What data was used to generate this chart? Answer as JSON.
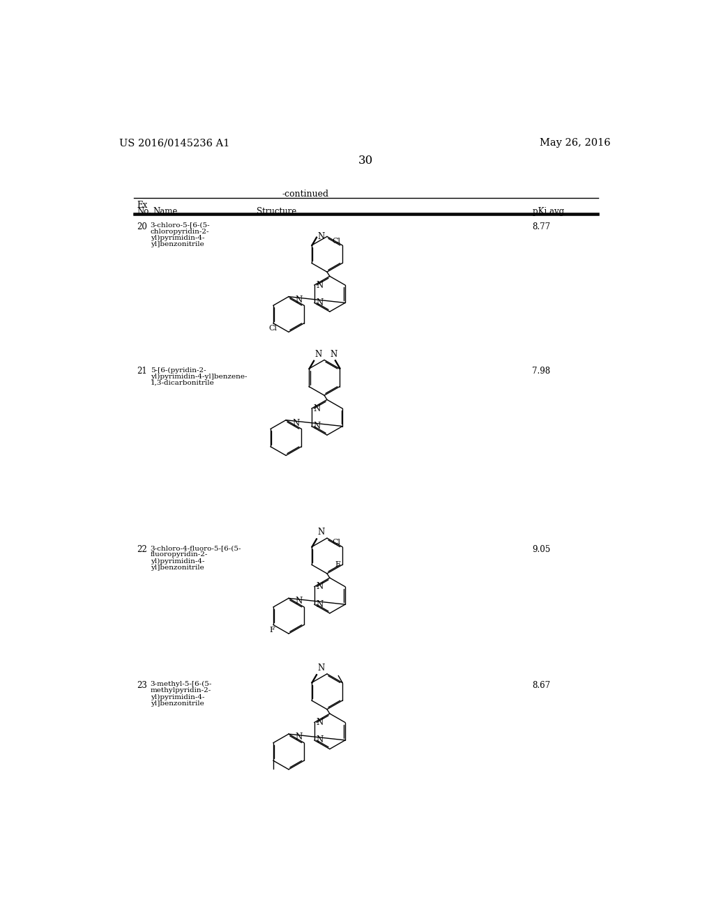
{
  "background_color": "#ffffff",
  "page_number": "30",
  "patent_left": "US 2016/0145236 A1",
  "patent_right": "May 26, 2016",
  "table_header": "-continued",
  "entries": [
    {
      "no": "20",
      "name": [
        "3-chloro-5-[6-(5-",
        "chloropyridin-2-",
        "yl)pyrimidin-4-",
        "yl]benzonitrile"
      ],
      "pki": "8.77"
    },
    {
      "no": "21",
      "name": [
        "5-[6-(pyridin-2-",
        "yl)pyrimidin-4-yl]benzene-",
        "1,3-dicarbonitrile"
      ],
      "pki": "7.98"
    },
    {
      "no": "22",
      "name": [
        "3-chloro-4-fluoro-5-[6-(5-",
        "fluoropyridin-2-",
        "yl)pyrimidin-4-",
        "yl]benzonitrile"
      ],
      "pki": "9.05"
    },
    {
      "no": "23",
      "name": [
        "3-methyl-5-[6-(5-",
        "methylpyridin-2-",
        "yl)pyrimidin-4-",
        "yl]benzonitrile"
      ],
      "pki": "8.67"
    }
  ]
}
